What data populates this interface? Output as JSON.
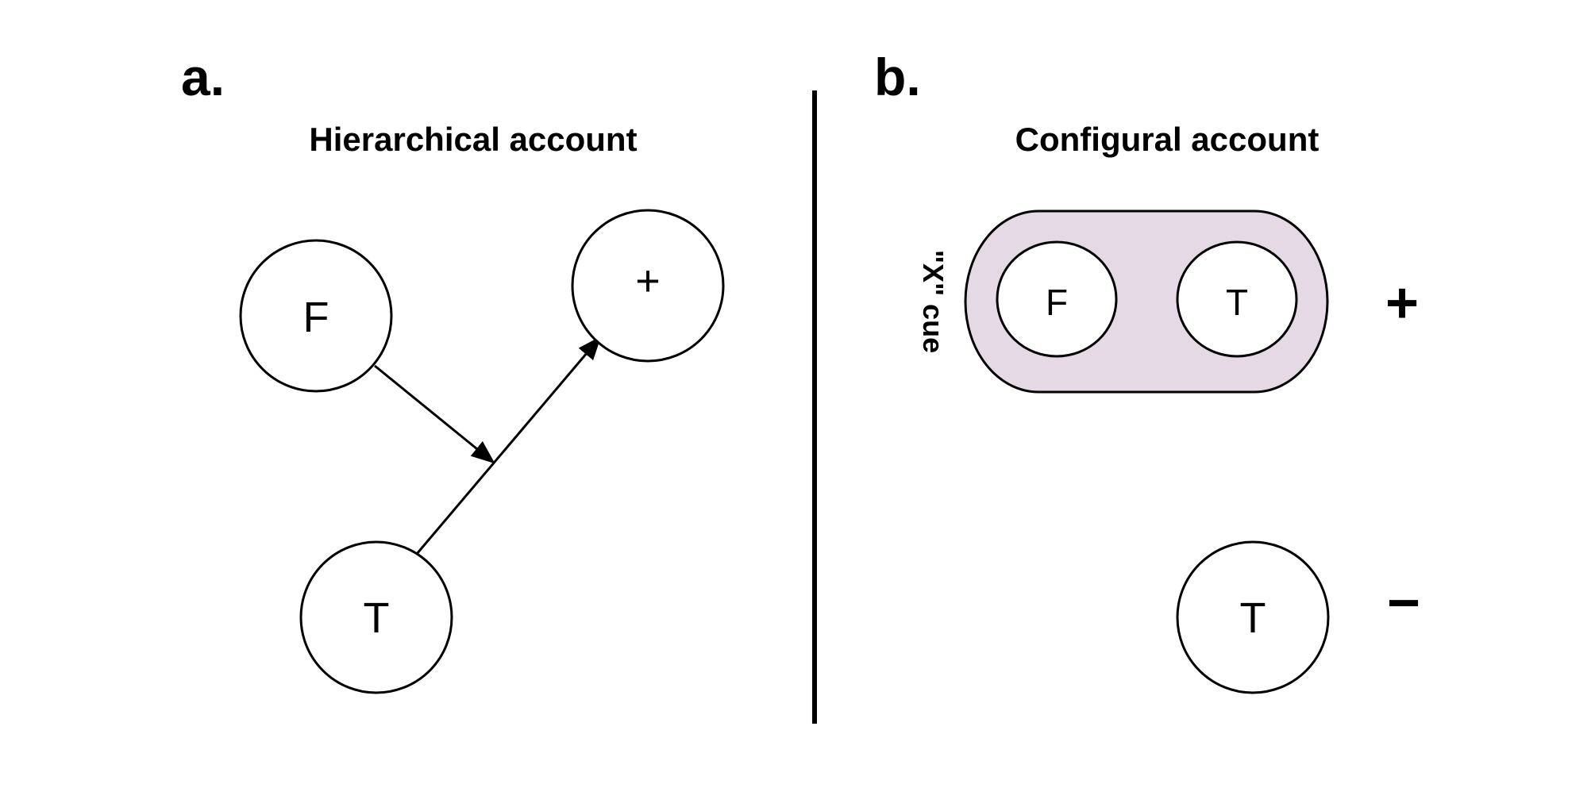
{
  "panel_a": {
    "letter": "a.",
    "title": "Hierarchical account",
    "nodes": {
      "feature": "F",
      "target": "T",
      "outcome": "+"
    }
  },
  "panel_b": {
    "letter": "b.",
    "title": "Configural account",
    "cue_label": "\"X\" cue",
    "compound": {
      "feature": "F",
      "target": "T",
      "color": "#e4d9e5"
    },
    "compound_outcome": "+",
    "alone_target": "T",
    "alone_outcome": "−"
  }
}
